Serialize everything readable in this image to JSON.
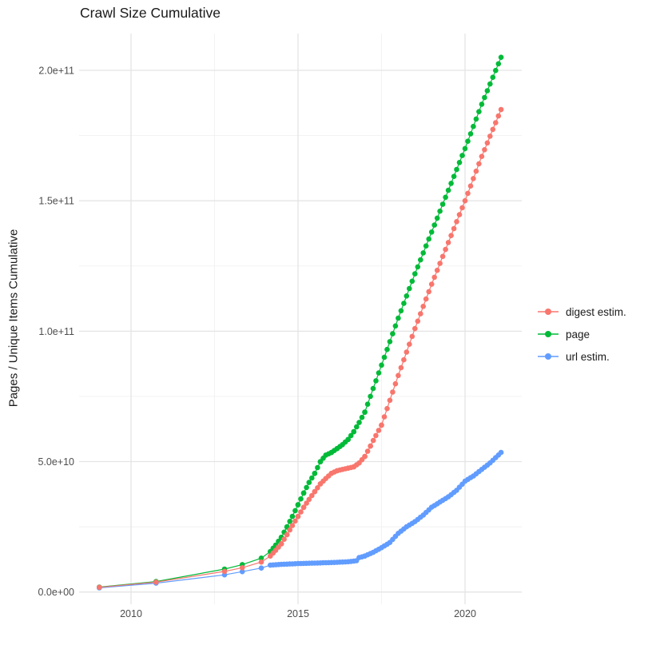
{
  "colors": {
    "digest": "#F8766D",
    "page": "#00BA38",
    "url": "#619CFF",
    "grid_major": "#E4E4E4",
    "grid_minor": "#F1F1F1",
    "tick_text": "#4D4D4D",
    "title_text": "#1A1A1A",
    "background": "#FFFFFF"
  },
  "legend": {
    "position": "right",
    "items": [
      {
        "label": "digest estim."
      },
      {
        "label": "page"
      },
      {
        "label": "url estim."
      }
    ]
  },
  "chart_data": {
    "type": "scatter",
    "title": "Crawl Size Cumulative",
    "xlabel": "",
    "ylabel": "Pages / Unique Items Cumulative",
    "x_ticks": [
      2010,
      2015,
      2020
    ],
    "x_tick_labels": [
      "2010",
      "2015",
      "2020"
    ],
    "y_ticks": [
      0,
      50000000000.0,
      100000000000.0,
      150000000000.0,
      200000000000.0
    ],
    "y_tick_labels": [
      "0.0e+00",
      "5.0e+10",
      "1.0e+11",
      "1.5e+11",
      "2.0e+11"
    ],
    "xlim": [
      2008.6,
      2021.7
    ],
    "ylim": [
      0,
      215000000000.0
    ],
    "grid": true,
    "legend_position": "right",
    "marker": "circle",
    "sampling_note": "crawl points are roughly monthly from 2014 onward; anchors list [year, cumulative count]; monthly dots lie on linear segments between anchors",
    "series": [
      {
        "name": "digest estim.",
        "color": "#F8766D",
        "anchors": [
          [
            2009.05,
            1800000000.0
          ],
          [
            2010.75,
            3800000000.0
          ],
          [
            2012.8,
            7900000000.0
          ],
          [
            2013.33,
            9300000000.0
          ],
          [
            2013.9,
            11500000000.0
          ],
          [
            2014.17,
            13800000000.0
          ],
          [
            2014.33,
            16000000000.0
          ],
          [
            2014.5,
            18500000000.0
          ],
          [
            2014.67,
            22000000000.0
          ],
          [
            2014.83,
            25500000000.0
          ],
          [
            2015.0,
            29000000000.0
          ],
          [
            2015.17,
            32500000000.0
          ],
          [
            2015.33,
            35500000000.0
          ],
          [
            2015.5,
            38500000000.0
          ],
          [
            2015.67,
            41500000000.0
          ],
          [
            2015.83,
            43500000000.0
          ],
          [
            2016.0,
            45500000000.0
          ],
          [
            2016.17,
            46500000000.0
          ],
          [
            2016.33,
            47000000000.0
          ],
          [
            2016.5,
            47500000000.0
          ],
          [
            2016.67,
            48000000000.0
          ],
          [
            2016.83,
            49500000000.0
          ],
          [
            2017.0,
            52000000000.0
          ],
          [
            2017.17,
            56000000000.0
          ],
          [
            2017.33,
            60000000000.0
          ],
          [
            2017.5,
            64000000000.0
          ],
          [
            2018.0,
            83000000000.0
          ],
          [
            2018.5,
            101000000000.0
          ],
          [
            2019.0,
            118000000000.0
          ],
          [
            2019.5,
            134000000000.0
          ],
          [
            2020.0,
            150000000000.0
          ],
          [
            2020.5,
            167000000000.0
          ],
          [
            2021.08,
            185000000000.0
          ]
        ]
      },
      {
        "name": "page",
        "color": "#00BA38",
        "anchors": [
          [
            2009.05,
            1900000000.0
          ],
          [
            2010.75,
            4000000000.0
          ],
          [
            2012.8,
            8800000000.0
          ],
          [
            2013.33,
            10500000000.0
          ],
          [
            2013.9,
            13000000000.0
          ],
          [
            2014.17,
            15500000000.0
          ],
          [
            2014.33,
            18000000000.0
          ],
          [
            2014.5,
            21000000000.0
          ],
          [
            2014.67,
            25000000000.0
          ],
          [
            2014.83,
            29000000000.0
          ],
          [
            2015.0,
            33500000000.0
          ],
          [
            2015.17,
            38000000000.0
          ],
          [
            2015.33,
            42000000000.0
          ],
          [
            2015.5,
            45500000000.0
          ],
          [
            2015.67,
            50000000000.0
          ],
          [
            2015.83,
            52500000000.0
          ],
          [
            2016.0,
            53500000000.0
          ],
          [
            2016.17,
            55000000000.0
          ],
          [
            2016.33,
            56500000000.0
          ],
          [
            2016.5,
            58500000000.0
          ],
          [
            2016.67,
            61500000000.0
          ],
          [
            2016.83,
            65000000000.0
          ],
          [
            2017.0,
            69000000000.0
          ],
          [
            2017.5,
            87000000000.0
          ],
          [
            2018.0,
            105000000000.0
          ],
          [
            2018.5,
            122000000000.0
          ],
          [
            2019.0,
            138000000000.0
          ],
          [
            2019.5,
            154000000000.0
          ],
          [
            2020.0,
            170000000000.0
          ],
          [
            2020.5,
            187000000000.0
          ],
          [
            2021.08,
            205000000000.0
          ]
        ]
      },
      {
        "name": "url estim.",
        "color": "#619CFF",
        "anchors": [
          [
            2009.05,
            1600000000.0
          ],
          [
            2010.75,
            3400000000.0
          ],
          [
            2012.8,
            6600000000.0
          ],
          [
            2013.33,
            7800000000.0
          ],
          [
            2013.9,
            9200000000.0
          ],
          [
            2014.17,
            10300000000.0
          ],
          [
            2014.5,
            10600000000.0
          ],
          [
            2015.0,
            10900000000.0
          ],
          [
            2015.5,
            11100000000.0
          ],
          [
            2016.0,
            11300000000.0
          ],
          [
            2016.5,
            11600000000.0
          ],
          [
            2016.75,
            12000000000.0
          ],
          [
            2016.83,
            13200000000.0
          ],
          [
            2017.0,
            13800000000.0
          ],
          [
            2017.25,
            15200000000.0
          ],
          [
            2017.5,
            17000000000.0
          ],
          [
            2017.75,
            19000000000.0
          ],
          [
            2018.0,
            22500000000.0
          ],
          [
            2018.25,
            25000000000.0
          ],
          [
            2018.5,
            27000000000.0
          ],
          [
            2018.75,
            29500000000.0
          ],
          [
            2019.0,
            32500000000.0
          ],
          [
            2019.25,
            34500000000.0
          ],
          [
            2019.5,
            36500000000.0
          ],
          [
            2019.75,
            39000000000.0
          ],
          [
            2020.0,
            42500000000.0
          ],
          [
            2020.25,
            44500000000.0
          ],
          [
            2020.5,
            47000000000.0
          ],
          [
            2020.75,
            49500000000.0
          ],
          [
            2021.08,
            53500000000.0
          ]
        ]
      }
    ]
  }
}
